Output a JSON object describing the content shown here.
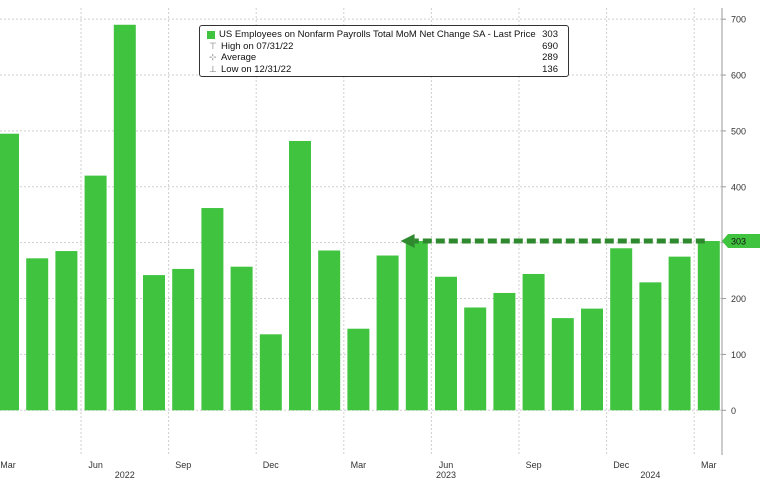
{
  "colors": {
    "bar": "#40c440",
    "grid": "#cfcfcf",
    "axis_text": "#333333",
    "last_price_tag": "#40c440",
    "arrow": "#2f8a2f"
  },
  "legend": {
    "series_label": "US Employees on Nonfarm Payrolls Total MoM Net Change SA - Last Price",
    "series_value": "303",
    "high_label": "High on 07/31/22",
    "high_value": "690",
    "average_label": "Average",
    "average_value": "289",
    "low_label": "Low on 12/31/22",
    "low_value": "136"
  },
  "last_price_tag": "303",
  "chart_data": {
    "type": "bar",
    "categories": [
      "2022-03",
      "2022-04",
      "2022-05",
      "2022-06",
      "2022-07",
      "2022-08",
      "2022-09",
      "2022-10",
      "2022-11",
      "2022-12",
      "2023-01",
      "2023-02",
      "2023-03",
      "2023-04",
      "2023-05",
      "2023-06",
      "2023-07",
      "2023-08",
      "2023-09",
      "2023-10",
      "2023-11",
      "2023-12",
      "2024-01",
      "2024-02",
      "2024-03"
    ],
    "series": [
      {
        "values": [
          495,
          272,
          285,
          420,
          690,
          242,
          253,
          362,
          257,
          136,
          482,
          286,
          146,
          277,
          303,
          239,
          184,
          210,
          244,
          165,
          182,
          290,
          229,
          275,
          303
        ]
      }
    ],
    "ylim": [
      -80,
      720
    ],
    "yticks": [
      0,
      100,
      200,
      300,
      400,
      500,
      600,
      700
    ],
    "ytick_labels": [
      "0",
      "100",
      "200",
      "300",
      "400",
      "500",
      "600",
      "700"
    ],
    "xtick_labels": [
      {
        "label": "Mar",
        "category": "2022-03"
      },
      {
        "label": "Jun",
        "category": "2022-06"
      },
      {
        "label": "Sep",
        "category": "2022-09"
      },
      {
        "label": "Dec",
        "category": "2022-12"
      },
      {
        "label": "Mar",
        "category": "2023-03"
      },
      {
        "label": "Jun",
        "category": "2023-06"
      },
      {
        "label": "Sep",
        "category": "2023-09"
      },
      {
        "label": "Dec",
        "category": "2023-12"
      },
      {
        "label": "Mar",
        "category": "2024-03"
      }
    ],
    "year_labels": [
      {
        "label": "2022",
        "category": "2022-07"
      },
      {
        "label": "2023",
        "category": "2023-06"
      },
      {
        "label": "2024",
        "category": "2024-01"
      }
    ],
    "annotation": {
      "type": "dashed-arrow",
      "value": 303,
      "from_category": "2024-03",
      "to_category": "2023-04"
    },
    "grid": true,
    "legend_position": "top-center"
  }
}
